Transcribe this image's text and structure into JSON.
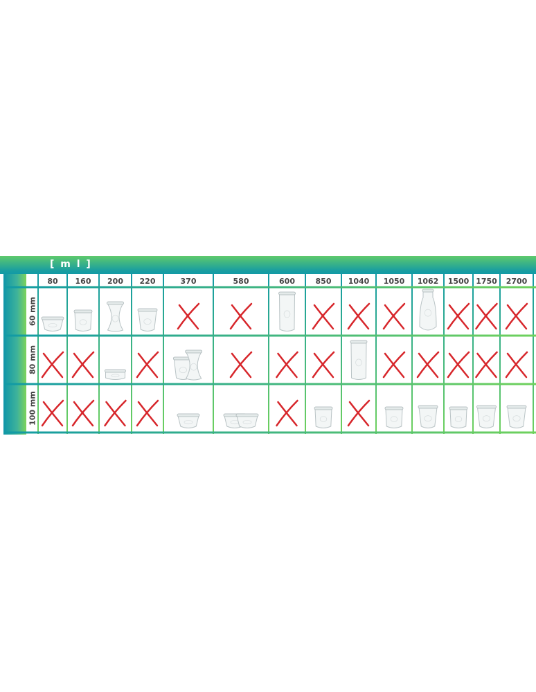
{
  "unit_label": "[ m l ]",
  "columns": [
    "80",
    "160",
    "200",
    "220",
    "370",
    "580",
    "600",
    "850",
    "1040",
    "1050",
    "1062",
    "1500",
    "1750",
    "2700"
  ],
  "rows": [
    {
      "label": "60 mm",
      "cells": [
        {
          "jars": [
            "mold"
          ]
        },
        {
          "jars": [
            "cylinder"
          ]
        },
        {
          "jars": [
            "deco"
          ]
        },
        {
          "jars": [
            "tulip"
          ]
        },
        {
          "unavailable": true
        },
        {
          "unavailable": true
        },
        {
          "jars": [
            "tall-cylinder"
          ]
        },
        {
          "unavailable": true
        },
        {
          "unavailable": true
        },
        {
          "unavailable": true
        },
        {
          "jars": [
            "bottle"
          ]
        },
        {
          "unavailable": true
        },
        {
          "unavailable": true
        },
        {
          "unavailable": true
        }
      ]
    },
    {
      "label": "80 mm",
      "cells": [
        {
          "unavailable": true
        },
        {
          "unavailable": true
        },
        {
          "jars": [
            "flat"
          ]
        },
        {
          "unavailable": true
        },
        {
          "jars": [
            "tulip",
            "deco"
          ]
        },
        {
          "unavailable": true
        },
        {
          "unavailable": true
        },
        {
          "unavailable": true
        },
        {
          "jars": [
            "tall-cylinder"
          ]
        },
        {
          "unavailable": true
        },
        {
          "unavailable": true
        },
        {
          "unavailable": true
        },
        {
          "unavailable": true
        },
        {
          "unavailable": true
        }
      ]
    },
    {
      "label": "100 mm",
      "cells": [
        {
          "unavailable": true
        },
        {
          "unavailable": true
        },
        {
          "unavailable": true
        },
        {
          "unavailable": true
        },
        {
          "jars": [
            "mold"
          ]
        },
        {
          "jars": [
            "mold",
            "mold"
          ]
        },
        {
          "unavailable": true
        },
        {
          "jars": [
            "cylinder"
          ]
        },
        {
          "unavailable": true
        },
        {
          "jars": [
            "cylinder"
          ]
        },
        {
          "jars": [
            "tulip"
          ]
        },
        {
          "jars": [
            "cylinder"
          ]
        },
        {
          "jars": [
            "tulip"
          ]
        },
        {
          "jars": [
            "tulip"
          ]
        }
      ]
    }
  ],
  "colors": {
    "teal": "#119aa5",
    "green": "#6fd15c",
    "cross": "#d7262b",
    "header_text": "#444444"
  }
}
